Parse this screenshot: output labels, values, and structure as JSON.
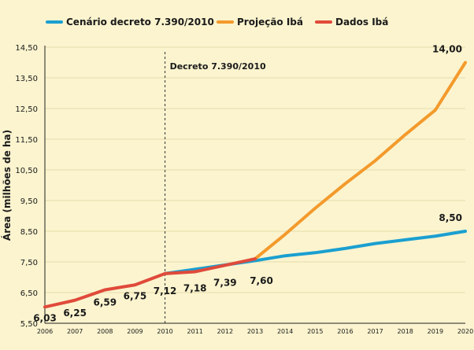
{
  "chart_data": {
    "type": "line",
    "ylabel": "Área (milhões de ha)",
    "ylim": [
      5.5,
      14.5
    ],
    "yticks": [
      "5,50",
      "6,50",
      "7,50",
      "8,50",
      "9,50",
      "10,50",
      "11,50",
      "12,50",
      "13,50",
      "14,50"
    ],
    "x": [
      "2006",
      "2007",
      "2008",
      "2009",
      "2010",
      "2011",
      "2012",
      "2013",
      "2014",
      "2015",
      "2016",
      "2017",
      "2018",
      "2019",
      "2020"
    ],
    "annotation": "Decreto 7.390/2010",
    "legend_position": "top",
    "series": [
      {
        "name": "Cenário decreto 7.390/2010",
        "color": "#1a9fd0",
        "x": [
          "2010",
          "2011",
          "2012",
          "2013",
          "2014",
          "2015",
          "2016",
          "2017",
          "2018",
          "2019",
          "2020"
        ],
        "values": [
          7.12,
          7.26,
          7.4,
          7.54,
          7.7,
          7.8,
          7.94,
          8.1,
          8.22,
          8.34,
          8.5
        ]
      },
      {
        "name": "Projeção Ibá",
        "color": "#f39a2c",
        "x": [
          "2013",
          "2014",
          "2015",
          "2016",
          "2017",
          "2018",
          "2019",
          "2020"
        ],
        "values": [
          7.6,
          8.4,
          9.25,
          10.05,
          10.8,
          11.65,
          12.45,
          14.0
        ]
      },
      {
        "name": "Dados Ibá",
        "color": "#e04a3a",
        "x": [
          "2006",
          "2007",
          "2008",
          "2009",
          "2010",
          "2011",
          "2012",
          "2013"
        ],
        "values": [
          6.03,
          6.25,
          6.59,
          6.75,
          7.12,
          7.18,
          7.39,
          7.6
        ]
      }
    ],
    "data_labels": [
      {
        "x": "2006",
        "text": "6,03"
      },
      {
        "x": "2007",
        "text": "6,25"
      },
      {
        "x": "2008",
        "text": "6,59"
      },
      {
        "x": "2009",
        "text": "6,75"
      },
      {
        "x": "2010",
        "text": "7,12"
      },
      {
        "x": "2011",
        "text": "7,18"
      },
      {
        "x": "2012",
        "text": "7,39"
      },
      {
        "x": "2013",
        "text": "7,60"
      },
      {
        "x": "2020",
        "text": "14,00"
      },
      {
        "x": "2020",
        "text": "8,50"
      }
    ]
  }
}
